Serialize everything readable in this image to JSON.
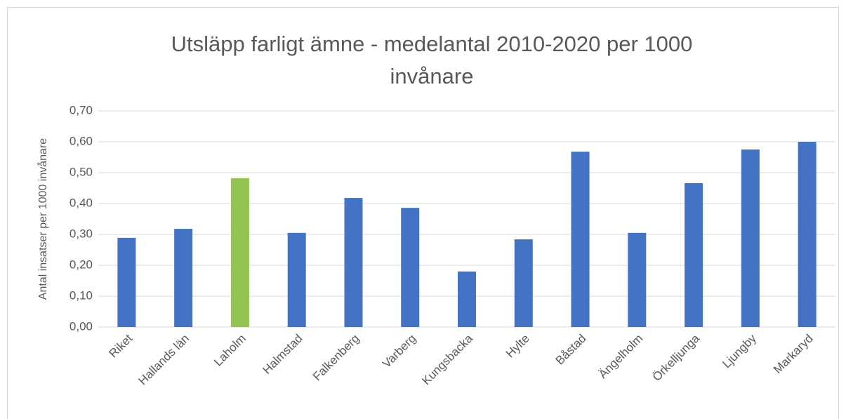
{
  "chart_data": {
    "type": "bar",
    "title": "Utsläpp farligt ämne - medelantal 2010-2020 per 1000 invånare",
    "y_label": "Antal insatser per 1000 invånare",
    "categories": [
      "Riket",
      "Hallands län",
      "Laholm",
      "Halmstad",
      "Falkenberg",
      "Varberg",
      "Kungsbacka",
      "Hylte",
      "Båstad",
      "Ängelholm",
      "Örkelljunga",
      "Ljungby",
      "Markaryd"
    ],
    "values": [
      0.289,
      0.318,
      0.482,
      0.305,
      0.418,
      0.386,
      0.18,
      0.284,
      0.568,
      0.305,
      0.466,
      0.575,
      0.6
    ],
    "colors": [
      "#4472c4",
      "#4472c4",
      "#92c353",
      "#4472c4",
      "#4472c4",
      "#4472c4",
      "#4472c4",
      "#4472c4",
      "#4472c4",
      "#4472c4",
      "#4472c4",
      "#4472c4",
      "#4472c4"
    ],
    "ylim": [
      0,
      0.7
    ],
    "yticks": [
      {
        "value": 0,
        "label": "0,00"
      },
      {
        "value": 0.1,
        "label": "0,10"
      },
      {
        "value": 0.2,
        "label": "0,20"
      },
      {
        "value": 0.3,
        "label": "0,30"
      },
      {
        "value": 0.4,
        "label": "0,40"
      },
      {
        "value": 0.5,
        "label": "0,50"
      },
      {
        "value": 0.6,
        "label": "0,60"
      },
      {
        "value": 0.7,
        "label": "0,70"
      }
    ],
    "grid": true
  }
}
